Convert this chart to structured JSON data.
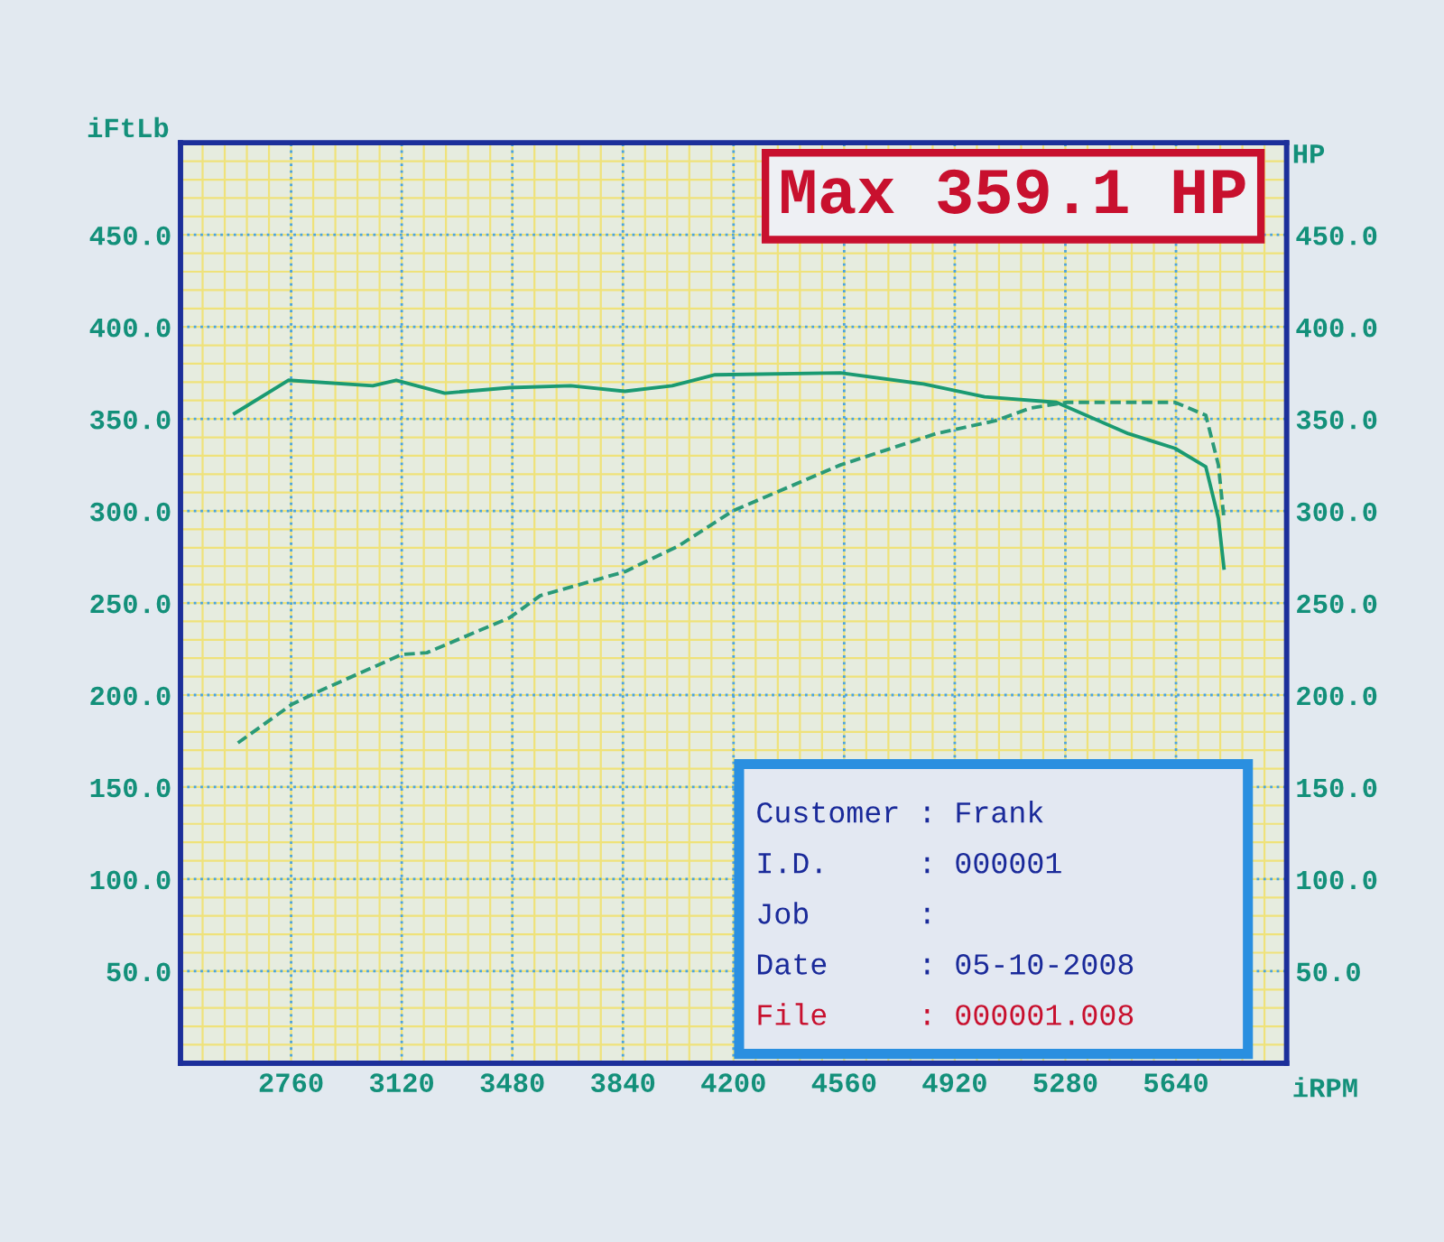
{
  "chart_data": {
    "type": "line",
    "xlabel": "iRPM",
    "ylabel": "iFtLb",
    "y2label": "HP",
    "xlim": [
      2400,
      6000
    ],
    "xticks": [
      2760,
      3120,
      3480,
      3840,
      4200,
      4560,
      4920,
      5280,
      5640
    ],
    "ylim": [
      0,
      500
    ],
    "yticks": [
      {
        "value": 50,
        "label": "50.0"
      },
      {
        "value": 100,
        "label": "100.0"
      },
      {
        "value": 150,
        "label": "150.0"
      },
      {
        "value": 200,
        "label": "200.0"
      },
      {
        "value": 250,
        "label": "250.0"
      },
      {
        "value": 300,
        "label": "300.0"
      },
      {
        "value": 350,
        "label": "350.0"
      },
      {
        "value": 400,
        "label": "400.0"
      },
      {
        "value": 450,
        "label": "450.0"
      }
    ],
    "y2lim": [
      0,
      500
    ],
    "y2ticks": [
      {
        "value": 50,
        "label": "50.0"
      },
      {
        "value": 100,
        "label": "100.0"
      },
      {
        "value": 150,
        "label": "150.0"
      },
      {
        "value": 200,
        "label": "200.0"
      },
      {
        "value": 250,
        "label": "250.0"
      },
      {
        "value": 300,
        "label": "300.0"
      },
      {
        "value": 350,
        "label": "350.0"
      },
      {
        "value": 400,
        "label": "400.0"
      },
      {
        "value": 450,
        "label": "450.0"
      }
    ],
    "grid": true,
    "legend": false,
    "series": [
      {
        "color": "#1a9a72",
        "line_style": "solid",
        "x": [
          2576,
          2751,
          3026,
          3102,
          3260,
          3471,
          3670,
          3846,
          4000,
          4140,
          4548,
          4818,
          5017,
          5251,
          5485,
          5637,
          5737,
          5778,
          5796
        ],
        "values": [
          353,
          371,
          368,
          371,
          364,
          367,
          368,
          365,
          368,
          374,
          375,
          369,
          362,
          359,
          342,
          334,
          324,
          296,
          269
        ]
      },
      {
        "color": "#2a9a78",
        "line_style": "dashed",
        "axis": "y2",
        "x": [
          2587,
          2763,
          2850,
          3120,
          3202,
          3471,
          3571,
          3846,
          4021,
          4197,
          4548,
          4859,
          5052,
          5169,
          5286,
          5520,
          5637,
          5737,
          5778,
          5796
        ],
        "values": [
          174,
          195,
          202,
          222,
          223,
          242,
          254,
          267,
          281,
          300,
          325,
          342,
          349,
          356,
          359,
          359,
          359,
          352,
          325,
          296
        ]
      }
    ],
    "annotations": [
      "Max 359.1 HP",
      "Customer : Frank",
      "I.D.     : 000001",
      "Job      :",
      "Date     : 05-10-2008",
      "File     : 000001.008"
    ]
  }
}
